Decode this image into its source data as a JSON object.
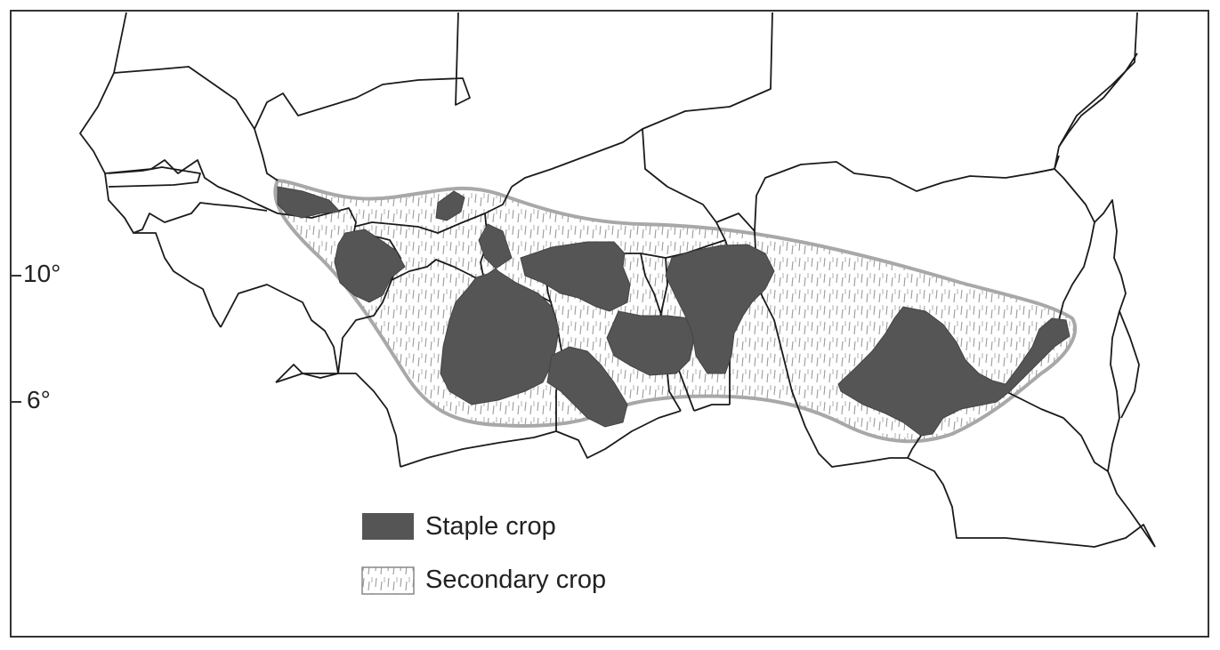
{
  "axis": {
    "lat_labels": [
      "10°",
      "6°"
    ]
  },
  "legend": {
    "items": [
      {
        "label": "Staple crop",
        "pattern": "solid",
        "color": "#555555"
      },
      {
        "label": "Secondary crop",
        "pattern": "hatched",
        "color": "#9a9a9a"
      }
    ]
  },
  "colors": {
    "staple_fill": "#555555",
    "secondary_outline": "#a8a8a8",
    "secondary_hatch": "#9a9a9a",
    "border": "#1a1a1a",
    "frame": "#333333"
  }
}
